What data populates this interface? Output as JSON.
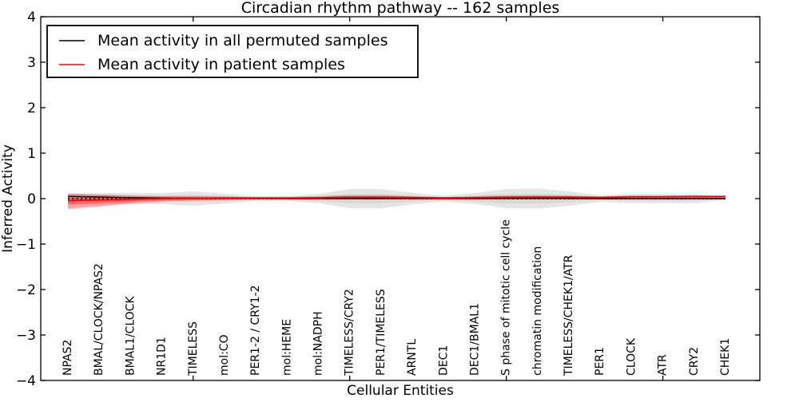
{
  "chart_data": {
    "type": "line",
    "title": "Circadian rhythm pathway -- 162 samples",
    "xlabel": "Cellular Entities",
    "ylabel": "Inferred Activity",
    "ylim": [
      -4,
      4
    ],
    "yticks": [
      4,
      3,
      2,
      1,
      0,
      -1,
      -2,
      -3,
      -4
    ],
    "x_numeric_ticks": [
      5,
      10,
      15,
      20
    ],
    "grid": false,
    "legend_position": "upper-left",
    "zero_line": {
      "style": "dotted",
      "color": "#000000",
      "value": 0
    },
    "categories": [
      "NPAS2",
      "BMAL/CLOCK/NPAS2",
      "BMAL1/CLOCK",
      "NR1D1",
      "TIMELESS",
      "mol:CO",
      "PER1-2 / CRY1-2",
      "mol:HEME",
      "mol:NADPH",
      "TIMELESS/CRY2",
      "PER1/TIMELESS",
      "ARNTL",
      "DEC1",
      "DEC1/BMAL1",
      "S phase of mitotic cell cycle",
      "chromatin modification",
      "TIMELESS/CHEK1/ATR",
      "PER1",
      "CLOCK",
      "ATR",
      "CRY2",
      "CHEK1"
    ],
    "series": [
      {
        "name": "Mean activity in all permuted samples",
        "color": "#000000",
        "band_color": "rgba(0,0,0,0.10)",
        "values": [
          0.05,
          0.035,
          0.02,
          0.012,
          0.008,
          0.005,
          0.003,
          0.002,
          0.002,
          0.002,
          0.002,
          0.001,
          0.001,
          0.001,
          0.001,
          0.001,
          0.001,
          0.0,
          0.0,
          0.0,
          0.0,
          0.0
        ],
        "band_upper": [
          0.11,
          0.12,
          0.13,
          0.12,
          0.16,
          0.11,
          0.05,
          0.05,
          0.1,
          0.21,
          0.21,
          0.13,
          0.06,
          0.12,
          0.21,
          0.22,
          0.16,
          0.07,
          0.1,
          0.1,
          0.1,
          0.03
        ],
        "band_lower": [
          -0.11,
          -0.12,
          -0.13,
          -0.12,
          -0.16,
          -0.11,
          -0.05,
          -0.05,
          -0.1,
          -0.21,
          -0.21,
          -0.13,
          -0.06,
          -0.12,
          -0.21,
          -0.22,
          -0.16,
          -0.07,
          -0.1,
          -0.1,
          -0.1,
          -0.03
        ]
      },
      {
        "name": "Mean activity in patient samples",
        "color": "#ff0000",
        "band_color": "rgba(255,0,0,0.35)",
        "values": [
          -0.045,
          -0.03,
          -0.012,
          0.0,
          0.008,
          0.012,
          0.012,
          0.012,
          0.018,
          0.028,
          0.028,
          0.022,
          0.015,
          0.02,
          0.03,
          0.032,
          0.032,
          0.025,
          0.04,
          0.04,
          0.045,
          0.045
        ],
        "band_upper": [
          0.115,
          0.09,
          0.068,
          0.055,
          0.053,
          0.047,
          0.037,
          0.037,
          0.048,
          0.073,
          0.073,
          0.052,
          0.035,
          0.05,
          0.065,
          0.067,
          0.062,
          0.045,
          0.065,
          0.065,
          0.07,
          0.065
        ],
        "band_lower": [
          -0.225,
          -0.17,
          -0.102,
          -0.06,
          -0.042,
          -0.028,
          -0.018,
          -0.018,
          -0.012,
          -0.017,
          -0.017,
          -0.008,
          -0.005,
          -0.01,
          -0.005,
          -0.003,
          0.002,
          0.005,
          0.015,
          0.015,
          0.02,
          0.025
        ]
      }
    ]
  },
  "legend": {
    "items": [
      {
        "label": "Mean activity in all permuted samples",
        "color": "#000000"
      },
      {
        "label": "Mean activity in patient samples",
        "color": "#ff0000"
      }
    ]
  },
  "colors": {
    "axis": "#000000",
    "background": "#ffffff",
    "permuted_line": "#000000",
    "patient_line": "#ff0000"
  }
}
